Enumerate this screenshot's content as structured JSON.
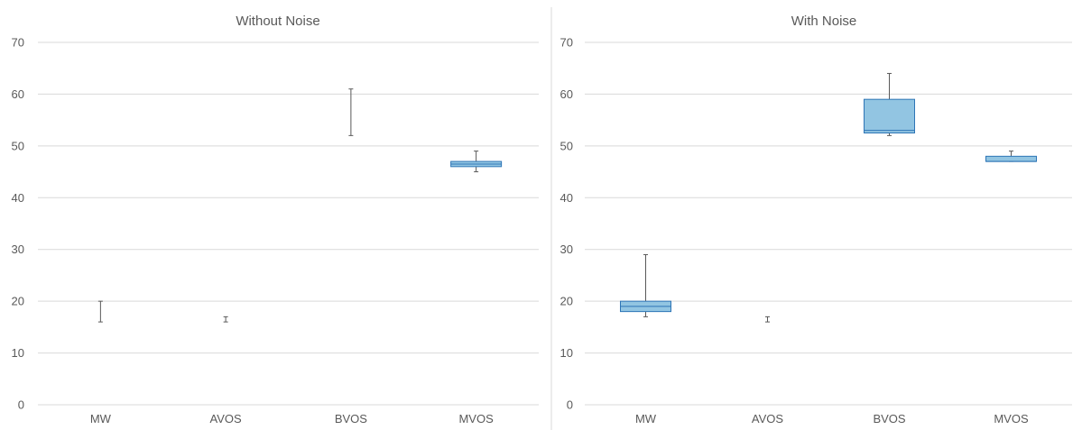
{
  "colors": {
    "box_fill": "#92c5e2",
    "box_stroke": "#2e75b6",
    "whisker": "#595959",
    "grid": "#d9d9d9",
    "text": "#595959"
  },
  "chart_data": [
    {
      "type": "box",
      "title": "Without Noise",
      "categories": [
        "MW",
        "AVOS",
        "BVOS",
        "MVOS"
      ],
      "ylim": [
        0,
        70
      ],
      "yticks": [
        0,
        10,
        20,
        30,
        40,
        50,
        60,
        70
      ],
      "grid": true,
      "boxes": [
        {
          "category": "MW",
          "min": 16,
          "q1": 16,
          "median": 16,
          "q3": 16,
          "max": 20
        },
        {
          "category": "AVOS",
          "min": 16,
          "q1": 16,
          "median": 16,
          "q3": 16,
          "max": 17
        },
        {
          "category": "BVOS",
          "min": 52,
          "q1": 52,
          "median": 52,
          "q3": 52,
          "max": 61
        },
        {
          "category": "MVOS",
          "min": 45,
          "q1": 46,
          "median": 46.5,
          "q3": 47,
          "max": 49
        }
      ]
    },
    {
      "type": "box",
      "title": "With Noise",
      "categories": [
        "MW",
        "AVOS",
        "BVOS",
        "MVOS"
      ],
      "ylim": [
        0,
        70
      ],
      "yticks": [
        0,
        10,
        20,
        30,
        40,
        50,
        60,
        70
      ],
      "grid": true,
      "boxes": [
        {
          "category": "MW",
          "min": 17,
          "q1": 18,
          "median": 19,
          "q3": 20,
          "max": 29
        },
        {
          "category": "AVOS",
          "min": 16,
          "q1": 16,
          "median": 16,
          "q3": 16,
          "max": 17
        },
        {
          "category": "BVOS",
          "min": 52,
          "q1": 52.5,
          "median": 53,
          "q3": 59,
          "max": 64
        },
        {
          "category": "MVOS",
          "min": 47,
          "q1": 47,
          "median": 47,
          "q3": 48,
          "max": 49
        }
      ]
    }
  ]
}
